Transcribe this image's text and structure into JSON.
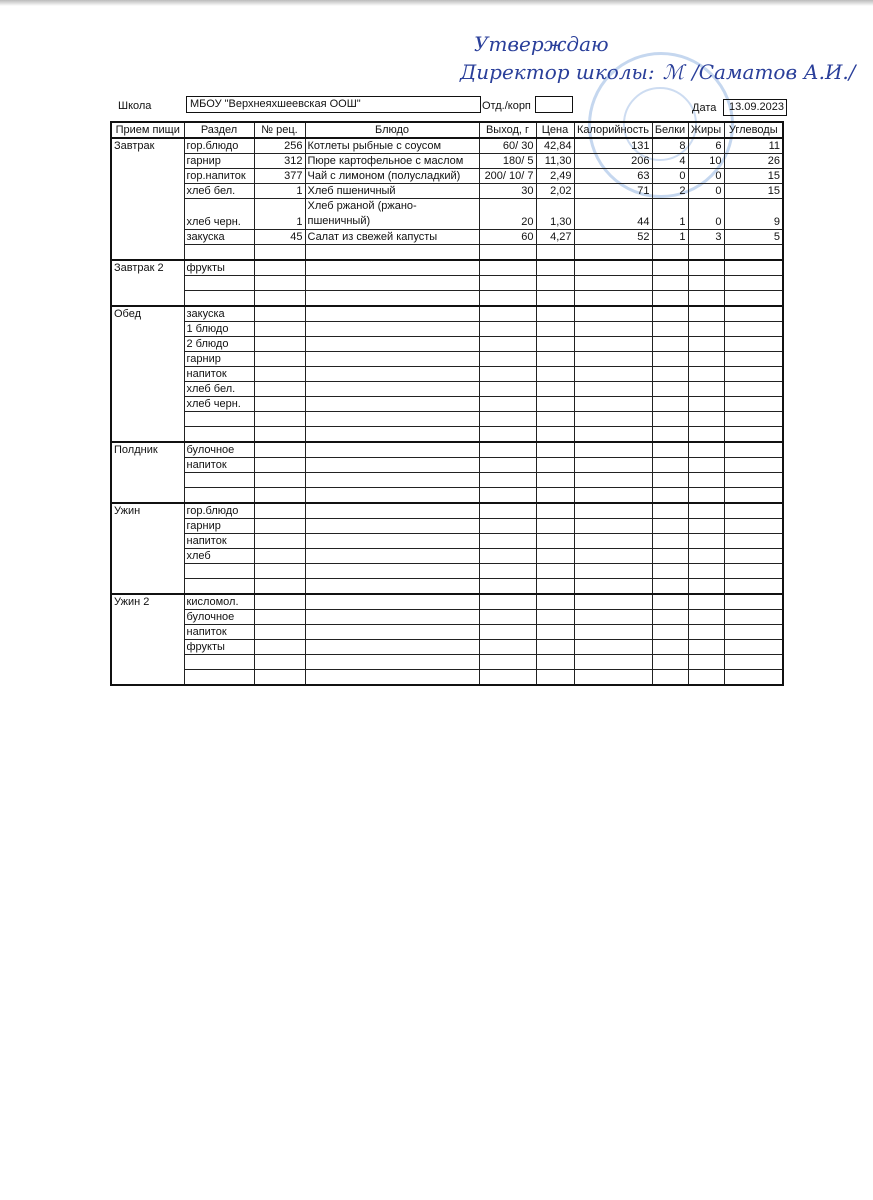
{
  "approval": {
    "line1": "Утверждаю",
    "line2": "Директор школы:",
    "signature": "/Саматов А.И./"
  },
  "header": {
    "school_label": "Школа",
    "school_value": "МБОУ \"Верхнеяхшеевская ООШ\"",
    "dept_label": "Отд./корп",
    "dept_value": "",
    "date_label": "Дата",
    "date_value": "13.09.2023"
  },
  "columns": [
    "Прием пищи",
    "Раздел",
    "№ рец.",
    "Блюдо",
    "Выход, г",
    "Цена",
    "Калорийность",
    "Белки",
    "Жиры",
    "Углеводы"
  ],
  "meals": [
    {
      "name": "Завтрак",
      "rows": [
        [
          "гор.блюдо",
          "256",
          "Котлеты рыбные с соусом",
          "60/ 30",
          "42,84",
          "131",
          "8",
          "6",
          "11"
        ],
        [
          "гарнир",
          "312",
          "Пюре картофельное  с маслом",
          "180/  5",
          "11,30",
          "206",
          "4",
          "10",
          "26"
        ],
        [
          "гор.напиток",
          "377",
          "Чай с лимоном (полусладкий)",
          "200/ 10/ 7",
          "2,49",
          "63",
          "0",
          "0",
          "15"
        ],
        [
          "хлеб бел.",
          "1",
          "Хлеб пшеничный",
          "30",
          "2,02",
          "71",
          "2",
          "0",
          "15"
        ],
        [
          "хлеб черн.",
          "1",
          "Хлеб ржаной (ржано-пшеничный)",
          "20",
          "1,30",
          "44",
          "1",
          "0",
          "9"
        ],
        [
          "закуска",
          "45",
          "Салат  из свежей капусты",
          "60",
          "4,27",
          "52",
          "1",
          "3",
          "5"
        ],
        [
          "",
          "",
          "",
          "",
          "",
          "",
          "",
          "",
          ""
        ]
      ]
    },
    {
      "name": "Завтрак 2",
      "rows": [
        [
          "фрукты"
        ],
        [
          ""
        ],
        [
          ""
        ]
      ]
    },
    {
      "name": "Обед",
      "rows": [
        [
          "закуска"
        ],
        [
          "1 блюдо"
        ],
        [
          "2 блюдо"
        ],
        [
          "гарнир"
        ],
        [
          "напиток"
        ],
        [
          "хлеб бел."
        ],
        [
          "хлеб черн."
        ],
        [
          ""
        ],
        [
          ""
        ]
      ]
    },
    {
      "name": "Полдник",
      "rows": [
        [
          "булочное"
        ],
        [
          "напиток"
        ],
        [
          ""
        ],
        [
          ""
        ]
      ]
    },
    {
      "name": "Ужин",
      "rows": [
        [
          "гор.блюдо"
        ],
        [
          "гарнир"
        ],
        [
          "напиток"
        ],
        [
          "хлеб"
        ],
        [
          ""
        ],
        [
          ""
        ]
      ]
    },
    {
      "name": "Ужин 2",
      "rows": [
        [
          "кисломол."
        ],
        [
          "булочное"
        ],
        [
          "напиток"
        ],
        [
          "фрукты"
        ],
        [
          ""
        ],
        [
          ""
        ]
      ]
    }
  ]
}
